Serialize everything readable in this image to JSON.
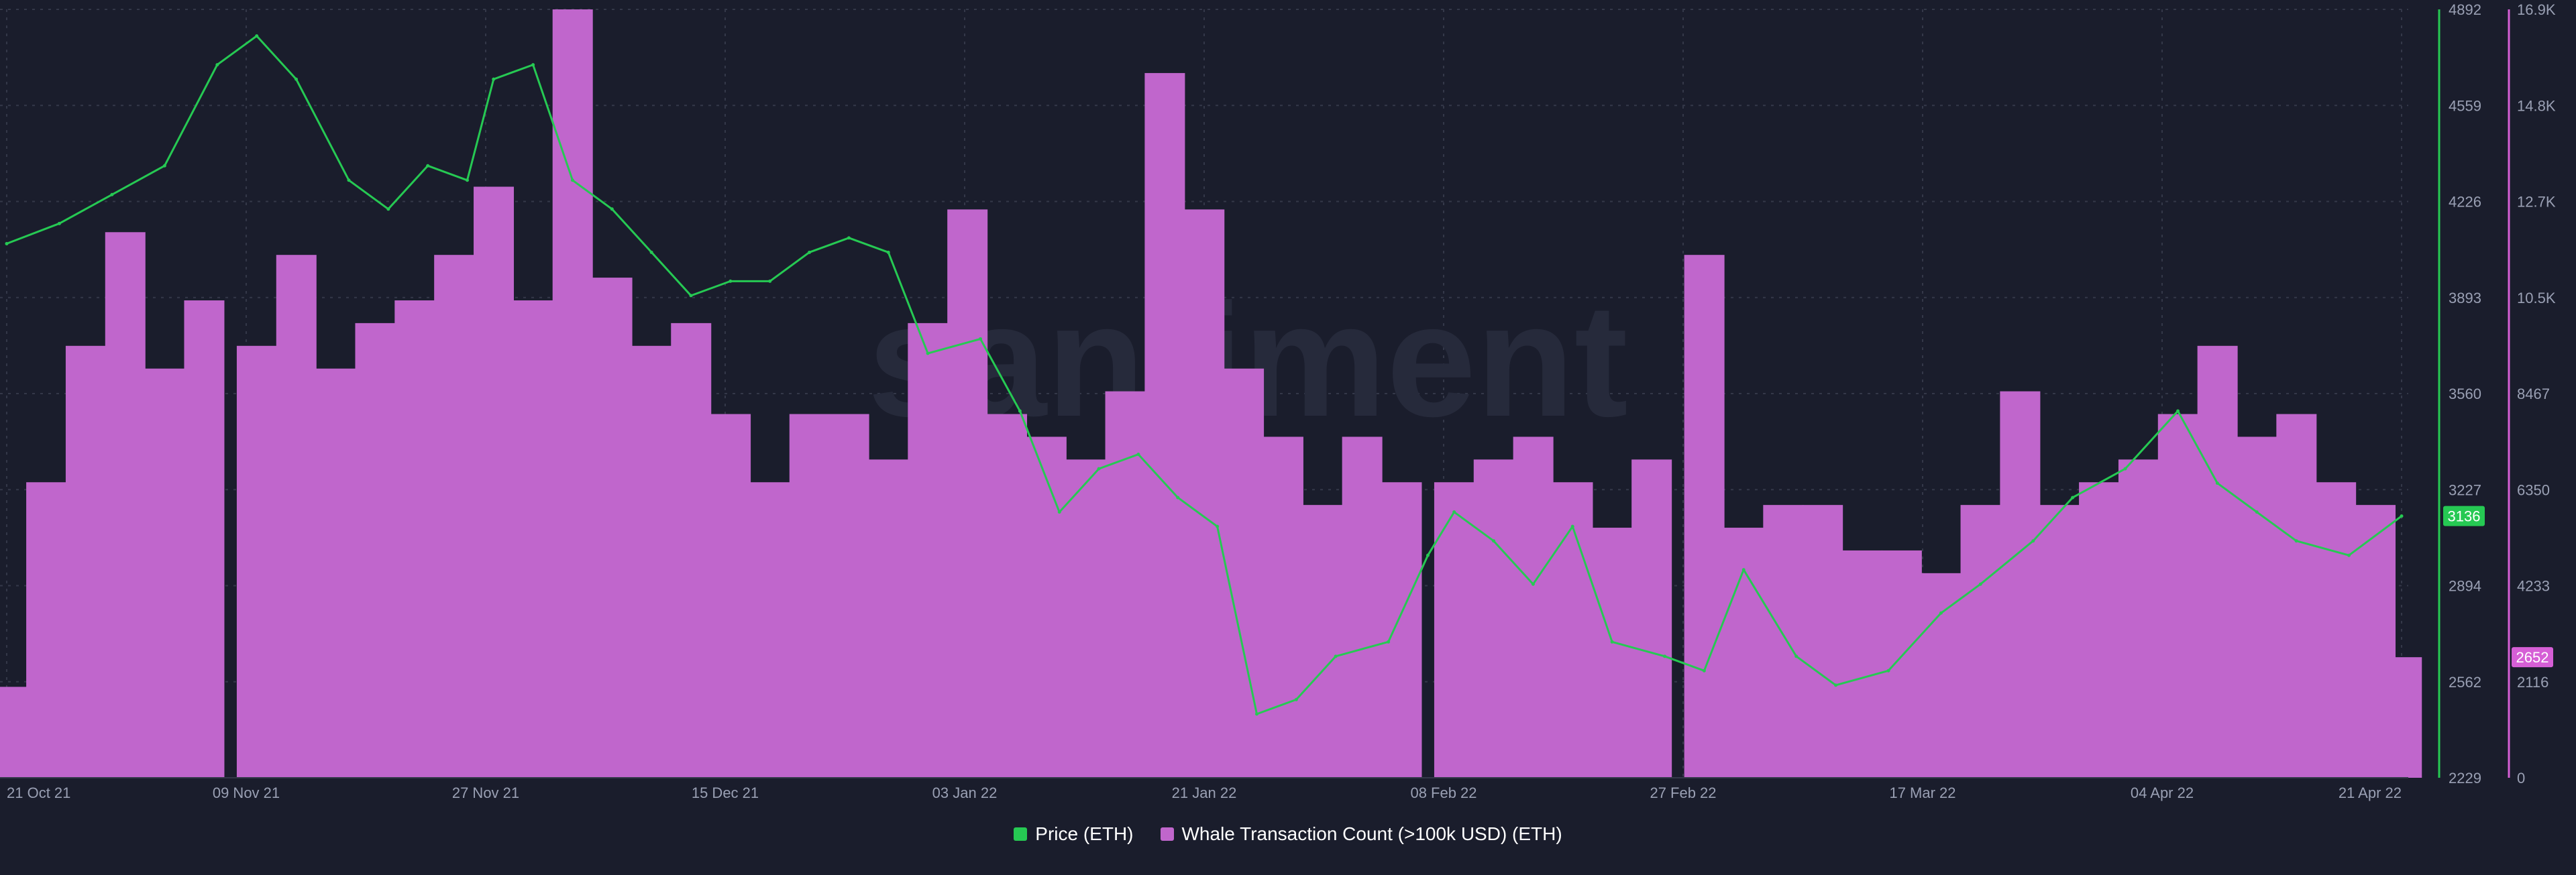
{
  "watermark": "santiment",
  "legend": {
    "price_label": "Price (ETH)",
    "whale_label": "Whale Transaction Count (>100k USD) (ETH)"
  },
  "colors": {
    "background": "#1a1d2c",
    "price": "#26c953",
    "whale": "#b9a0ff",
    "whale_fill": "#c066cc",
    "grid": "#343849",
    "axis_text": "#9aa0b4"
  },
  "chart_data": {
    "type": "line+bar",
    "x_tick_labels": [
      "21 Oct 21",
      "09 Nov 21",
      "27 Nov 21",
      "15 Dec 21",
      "03 Jan 22",
      "21 Jan 22",
      "08 Feb 22",
      "27 Feb 22",
      "17 Mar 22",
      "04 Apr 22",
      "21 Apr 22"
    ],
    "left_axis": {
      "series": "Price (ETH)",
      "ticks": [
        "4892",
        "4559",
        "4226",
        "3893",
        "3560",
        "3227",
        "2894",
        "2562",
        "2229"
      ],
      "ylim": [
        2229,
        4892
      ],
      "current_value_label": "3136"
    },
    "right_axis": {
      "series": "Whale Transaction Count (>100k USD) (ETH)",
      "ticks": [
        "16.9K",
        "14.8K",
        "12.7K",
        "10.5K",
        "8467",
        "6350",
        "4233",
        "2116",
        "0"
      ],
      "ylim": [
        0,
        16900
      ],
      "current_value_label": "2652"
    },
    "series": [
      {
        "name": "Price (ETH)",
        "type": "line",
        "x": [
          "2021-10-21",
          "2021-10-25",
          "2021-10-29",
          "2021-11-02",
          "2021-11-06",
          "2021-11-09",
          "2021-11-12",
          "2021-11-16",
          "2021-11-19",
          "2021-11-22",
          "2021-11-25",
          "2021-11-27",
          "2021-11-30",
          "2021-12-03",
          "2021-12-06",
          "2021-12-09",
          "2021-12-12",
          "2021-12-15",
          "2021-12-18",
          "2021-12-21",
          "2021-12-24",
          "2021-12-27",
          "2021-12-30",
          "2022-01-03",
          "2022-01-06",
          "2022-01-09",
          "2022-01-12",
          "2022-01-15",
          "2022-01-18",
          "2022-01-21",
          "2022-01-24",
          "2022-01-27",
          "2022-01-30",
          "2022-02-03",
          "2022-02-06",
          "2022-02-08",
          "2022-02-11",
          "2022-02-14",
          "2022-02-17",
          "2022-02-20",
          "2022-02-24",
          "2022-02-27",
          "2022-03-02",
          "2022-03-06",
          "2022-03-09",
          "2022-03-13",
          "2022-03-17",
          "2022-03-20",
          "2022-03-24",
          "2022-03-27",
          "2022-03-31",
          "2022-04-04",
          "2022-04-07",
          "2022-04-10",
          "2022-04-13",
          "2022-04-17",
          "2022-04-21"
        ],
        "values": [
          4080,
          4150,
          4250,
          4350,
          4700,
          4800,
          4650,
          4300,
          4200,
          4350,
          4300,
          4650,
          4700,
          4300,
          4200,
          4050,
          3900,
          3950,
          3950,
          4050,
          4100,
          4050,
          3700,
          3750,
          3500,
          3150,
          3300,
          3350,
          3200,
          3100,
          2450,
          2500,
          2650,
          2700,
          3000,
          3150,
          3050,
          2900,
          3100,
          2700,
          2650,
          2600,
          2950,
          2650,
          2550,
          2600,
          2800,
          2900,
          3050,
          3200,
          3300,
          3500,
          3250,
          3150,
          3050,
          3000,
          3136
        ]
      },
      {
        "name": "Whale Transaction Count (>100k USD) (ETH)",
        "type": "bar",
        "x": [
          "2021-10-21",
          "2021-10-24",
          "2021-10-27",
          "2021-10-30",
          "2021-11-02",
          "2021-11-05",
          "2021-11-09",
          "2021-11-12",
          "2021-11-15",
          "2021-11-18",
          "2021-11-21",
          "2021-11-24",
          "2021-11-27",
          "2021-11-30",
          "2021-12-03",
          "2021-12-06",
          "2021-12-09",
          "2021-12-12",
          "2021-12-15",
          "2021-12-18",
          "2021-12-21",
          "2021-12-24",
          "2021-12-27",
          "2021-12-30",
          "2022-01-02",
          "2022-01-05",
          "2022-01-08",
          "2022-01-11",
          "2022-01-14",
          "2022-01-17",
          "2022-01-20",
          "2022-01-23",
          "2022-01-26",
          "2022-01-29",
          "2022-02-01",
          "2022-02-04",
          "2022-02-08",
          "2022-02-11",
          "2022-02-14",
          "2022-02-17",
          "2022-02-20",
          "2022-02-23",
          "2022-02-27",
          "2022-03-02",
          "2022-03-05",
          "2022-03-08",
          "2022-03-11",
          "2022-03-14",
          "2022-03-17",
          "2022-03-20",
          "2022-03-23",
          "2022-03-26",
          "2022-03-29",
          "2022-04-01",
          "2022-04-04",
          "2022-04-07",
          "2022-04-10",
          "2022-04-13",
          "2022-04-16",
          "2022-04-19",
          "2022-04-21"
        ],
        "values": [
          2000,
          6500,
          9500,
          12000,
          9000,
          10500,
          9500,
          11500,
          9000,
          10000,
          10500,
          11500,
          13000,
          10500,
          16900,
          11000,
          9500,
          10000,
          8000,
          6500,
          8000,
          8000,
          7000,
          10000,
          12500,
          8000,
          7500,
          7000,
          8500,
          15500,
          12500,
          9000,
          7500,
          6000,
          7500,
          6500,
          6500,
          7000,
          7500,
          6500,
          5500,
          7000,
          11500,
          5500,
          6000,
          6000,
          5000,
          5000,
          4500,
          6000,
          8500,
          6000,
          6500,
          7000,
          8000,
          9500,
          7500,
          8000,
          6500,
          6000,
          2652
        ]
      }
    ],
    "grid": true,
    "legend_position": "bottom-center"
  }
}
